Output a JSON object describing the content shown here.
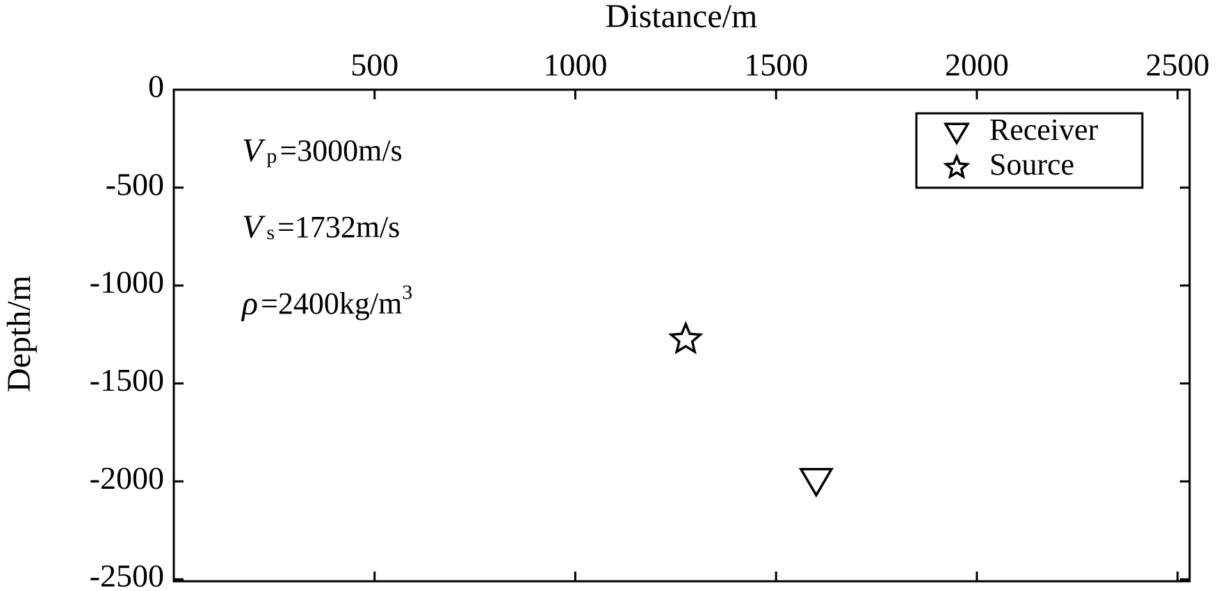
{
  "chart_data": {
    "type": "scatter",
    "x_label": "Distance/m",
    "y_label": "Depth/m",
    "xlim": [
      0,
      2530
    ],
    "ylim": [
      -2510,
      0
    ],
    "xticks": [
      500,
      1000,
      1500,
      2000,
      2500
    ],
    "yticks": [
      0,
      -500,
      -1000,
      -1500,
      -2000,
      -2500
    ],
    "series": [
      {
        "name": "Receiver",
        "color": "#000000",
        "marker": "triangle-down",
        "x": [
          1600
        ],
        "values": [
          -2000
        ]
      },
      {
        "name": "Source",
        "color": "#000000",
        "marker": "star",
        "x": [
          1275
        ],
        "values": [
          -1275
        ]
      }
    ],
    "legend": "upper right",
    "annotations": [
      {
        "symbol": "V",
        "subscript": "p",
        "text": "=3000m/s"
      },
      {
        "symbol": "V",
        "subscript": "s",
        "text": "=1732m/s"
      },
      {
        "symbol": "ρ",
        "text": "=2400kg/m",
        "superscript": "3"
      }
    ]
  }
}
